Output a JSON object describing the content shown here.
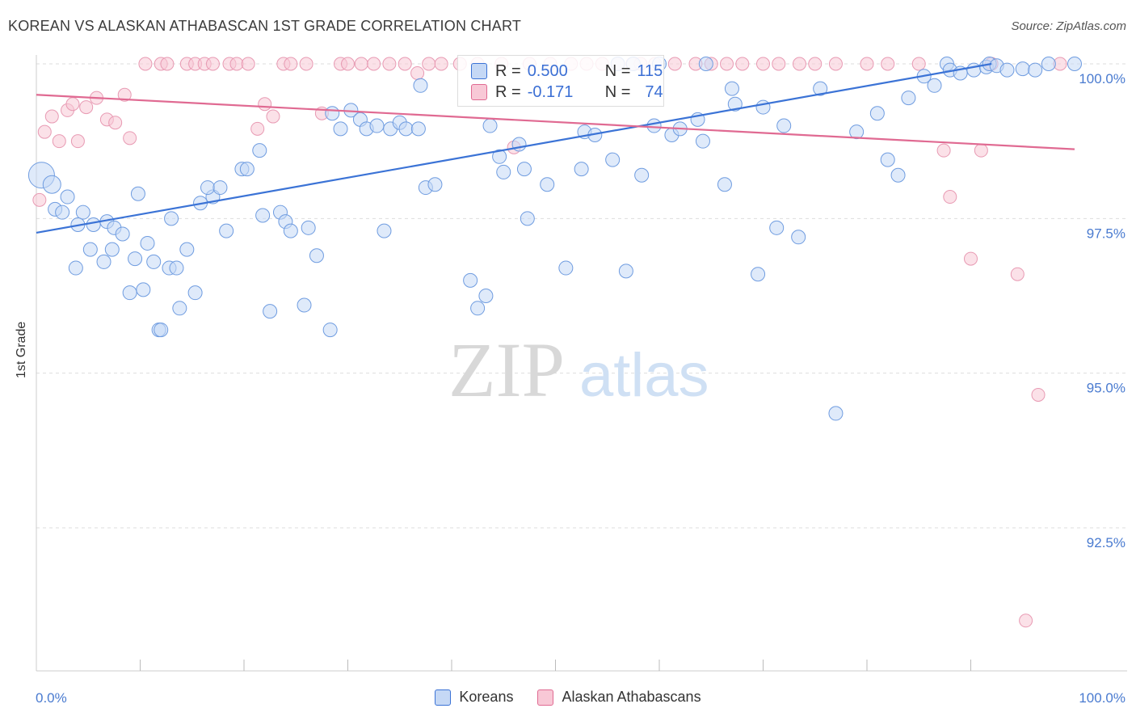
{
  "title": "KOREAN VS ALASKAN ATHABASCAN 1ST GRADE CORRELATION CHART",
  "source": "Source: ZipAtlas.com",
  "watermark": {
    "zip": "ZIP",
    "atlas": "atlas"
  },
  "legend": {
    "row1": {
      "r_label": "R =",
      "r_value": "0.500",
      "n_label": "N =",
      "n_value": "115"
    },
    "row2": {
      "r_label": "R =",
      "r_value": "-0.171",
      "n_label": "N =",
      "n_value": "74"
    }
  },
  "bottom_legend": {
    "series1": "Koreans",
    "series2": "Alaskan Athabascans"
  },
  "colors": {
    "blue": "#3b73d6",
    "blue_fill": "#c5d8f5",
    "pink": "#e06a92",
    "pink_fill": "#f8c8d6",
    "axis_label": "#4a7bd0"
  },
  "chart_data": {
    "type": "scatter",
    "title": "KOREAN VS ALASKAN ATHABASCAN 1ST GRADE CORRELATION CHART",
    "xlabel": "",
    "ylabel": "1st Grade",
    "xlim": [
      0,
      100
    ],
    "ylim": [
      90.1,
      100.2
    ],
    "x_tick_labels": [
      "0.0%",
      "100.0%"
    ],
    "y_ticks": [
      92.5,
      95.0,
      97.5,
      100.0
    ],
    "y_tick_labels": [
      "92.5%",
      "95.0%",
      "97.5%",
      "100.0%"
    ],
    "grid": "horizontal dashed",
    "legend_position": "top-center",
    "series": [
      {
        "name": "Koreans",
        "color": "#3b73d6",
        "trend": {
          "x": [
            0,
            92
          ],
          "y": [
            97.27,
            100.0
          ]
        },
        "points": [
          [
            0.5,
            98.2
          ],
          [
            1.5,
            98.05
          ],
          [
            1.8,
            97.65
          ],
          [
            3,
            97.85
          ],
          [
            2.5,
            97.6
          ],
          [
            4.5,
            97.6
          ],
          [
            4,
            97.4
          ],
          [
            5.5,
            97.4
          ],
          [
            6.8,
            97.45
          ],
          [
            7.5,
            97.35
          ],
          [
            8.3,
            97.25
          ],
          [
            3.8,
            96.7
          ],
          [
            5.2,
            97.0
          ],
          [
            6.5,
            96.8
          ],
          [
            7.3,
            97.0
          ],
          [
            9.5,
            96.85
          ],
          [
            10.7,
            97.1
          ],
          [
            11.3,
            96.8
          ],
          [
            12.8,
            96.7
          ],
          [
            13.5,
            96.7
          ],
          [
            14.5,
            97.0
          ],
          [
            9.8,
            97.9
          ],
          [
            13,
            97.5
          ],
          [
            15.3,
            96.3
          ],
          [
            9,
            96.3
          ],
          [
            10.3,
            96.35
          ],
          [
            13.8,
            96.05
          ],
          [
            11.8,
            95.7
          ],
          [
            12,
            95.7
          ],
          [
            15.8,
            97.75
          ],
          [
            17,
            97.85
          ],
          [
            16.5,
            98.0
          ],
          [
            17.7,
            98.0
          ],
          [
            18.3,
            97.3
          ],
          [
            19.8,
            98.3
          ],
          [
            20.3,
            98.3
          ],
          [
            21.5,
            98.6
          ],
          [
            21.8,
            97.55
          ],
          [
            22.5,
            96.0
          ],
          [
            23.5,
            97.6
          ],
          [
            24,
            97.45
          ],
          [
            24.5,
            97.3
          ],
          [
            25.8,
            96.1
          ],
          [
            26.2,
            97.35
          ],
          [
            27,
            96.9
          ],
          [
            28.3,
            95.7
          ],
          [
            28.5,
            99.2
          ],
          [
            29.3,
            98.95
          ],
          [
            30.3,
            99.25
          ],
          [
            31.2,
            99.1
          ],
          [
            31.8,
            98.95
          ],
          [
            32.8,
            99.0
          ],
          [
            33.5,
            97.3
          ],
          [
            34.1,
            98.95
          ],
          [
            35,
            99.05
          ],
          [
            35.6,
            98.95
          ],
          [
            37,
            99.65
          ],
          [
            36.8,
            98.95
          ],
          [
            37.5,
            98.0
          ],
          [
            38.4,
            98.05
          ],
          [
            41.8,
            96.5
          ],
          [
            42.5,
            96.05
          ],
          [
            43.3,
            96.25
          ],
          [
            43.7,
            99.0
          ],
          [
            44.6,
            98.5
          ],
          [
            45,
            98.25
          ],
          [
            46.5,
            98.7
          ],
          [
            47,
            98.3
          ],
          [
            47.3,
            97.5
          ],
          [
            49.2,
            98.05
          ],
          [
            51,
            96.7
          ],
          [
            52.8,
            98.9
          ],
          [
            52.5,
            98.3
          ],
          [
            53.8,
            98.85
          ],
          [
            55.5,
            98.45
          ],
          [
            56.8,
            96.65
          ],
          [
            58.3,
            98.2
          ],
          [
            59.5,
            99.0
          ],
          [
            61.2,
            98.85
          ],
          [
            62,
            98.95
          ],
          [
            63.7,
            99.1
          ],
          [
            64.2,
            98.75
          ],
          [
            66.3,
            98.05
          ],
          [
            67.3,
            99.35
          ],
          [
            69.5,
            96.6
          ],
          [
            71.3,
            97.35
          ],
          [
            72,
            99.0
          ],
          [
            73.4,
            97.2
          ],
          [
            77,
            94.35
          ],
          [
            81,
            99.2
          ],
          [
            82,
            98.45
          ],
          [
            83,
            98.2
          ],
          [
            84,
            99.45
          ],
          [
            85.5,
            99.8
          ],
          [
            86.5,
            99.65
          ],
          [
            87.7,
            100.0
          ],
          [
            88,
            99.9
          ],
          [
            89,
            99.85
          ],
          [
            90.3,
            99.9
          ],
          [
            91.5,
            99.95
          ],
          [
            91.8,
            100.0
          ],
          [
            92.5,
            99.97
          ],
          [
            93.5,
            99.9
          ],
          [
            95,
            99.92
          ],
          [
            96.2,
            99.9
          ],
          [
            97.5,
            100.0
          ],
          [
            100,
            100.0
          ],
          [
            79,
            98.9
          ],
          [
            75.5,
            99.6
          ],
          [
            70,
            99.3
          ],
          [
            67,
            99.6
          ],
          [
            64.5,
            100.0
          ],
          [
            60,
            100.0
          ],
          [
            57.5,
            100.0
          ],
          [
            56,
            100.0
          ]
        ]
      },
      {
        "name": "Alaskan Athabascans",
        "color": "#e06a92",
        "trend": {
          "x": [
            0,
            100
          ],
          "y": [
            99.5,
            98.62
          ]
        },
        "points": [
          [
            0.3,
            97.8
          ],
          [
            0.8,
            98.9
          ],
          [
            1.5,
            99.15
          ],
          [
            2.2,
            98.75
          ],
          [
            3,
            99.25
          ],
          [
            3.5,
            99.35
          ],
          [
            4,
            98.75
          ],
          [
            4.8,
            99.3
          ],
          [
            5.8,
            99.45
          ],
          [
            6.8,
            99.1
          ],
          [
            7.6,
            99.05
          ],
          [
            8.5,
            99.5
          ],
          [
            9,
            98.8
          ],
          [
            10.5,
            100.0
          ],
          [
            12,
            100.0
          ],
          [
            12.6,
            100.0
          ],
          [
            14.5,
            100.0
          ],
          [
            15.3,
            100.0
          ],
          [
            16.2,
            100.0
          ],
          [
            17,
            100.0
          ],
          [
            18.6,
            100.0
          ],
          [
            19.3,
            100.0
          ],
          [
            20.4,
            100.0
          ],
          [
            21.3,
            98.95
          ],
          [
            22,
            99.35
          ],
          [
            22.8,
            99.15
          ],
          [
            23.8,
            100.0
          ],
          [
            24.5,
            100.0
          ],
          [
            26,
            100.0
          ],
          [
            27.5,
            99.2
          ],
          [
            29.3,
            100.0
          ],
          [
            30,
            100.0
          ],
          [
            31.3,
            100.0
          ],
          [
            32.5,
            100.0
          ],
          [
            34,
            100.0
          ],
          [
            35.5,
            100.0
          ],
          [
            36.7,
            99.85
          ],
          [
            37.8,
            100.0
          ],
          [
            39,
            100.0
          ],
          [
            40.8,
            100.0
          ],
          [
            42.5,
            100.0
          ],
          [
            44.8,
            100.0
          ],
          [
            46,
            98.65
          ],
          [
            47.5,
            100.0
          ],
          [
            49.5,
            100.0
          ],
          [
            51.5,
            100.0
          ],
          [
            53,
            100.0
          ],
          [
            54.5,
            100.0
          ],
          [
            56,
            100.0
          ],
          [
            57.4,
            100.0
          ],
          [
            58.2,
            100.0
          ],
          [
            59.6,
            100.0
          ],
          [
            61.5,
            100.0
          ],
          [
            63.5,
            100.0
          ],
          [
            65,
            100.0
          ],
          [
            66.5,
            100.0
          ],
          [
            68,
            100.0
          ],
          [
            70,
            100.0
          ],
          [
            71.5,
            100.0
          ],
          [
            73.5,
            100.0
          ],
          [
            75,
            100.0
          ],
          [
            77,
            100.0
          ],
          [
            80,
            100.0
          ],
          [
            82,
            100.0
          ],
          [
            85,
            100.0
          ],
          [
            87.4,
            98.6
          ],
          [
            88,
            97.85
          ],
          [
            90,
            96.85
          ],
          [
            91,
            98.6
          ],
          [
            92,
            100.0
          ],
          [
            94.5,
            96.6
          ],
          [
            96.5,
            94.65
          ],
          [
            95.3,
            91.0
          ],
          [
            98.6,
            100.0
          ]
        ]
      }
    ]
  }
}
